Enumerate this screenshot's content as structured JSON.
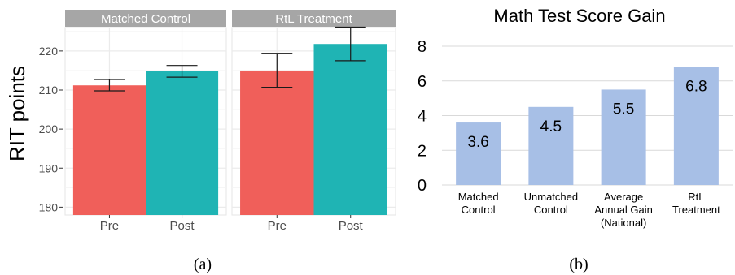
{
  "chart_data": [
    {
      "type": "bar",
      "panel_label": "(a)",
      "ylabel": "RIT points",
      "ylim": [
        178,
        226
      ],
      "yticks": [
        180,
        190,
        200,
        210,
        220
      ],
      "grid": true,
      "categories": [
        "Pre",
        "Post"
      ],
      "facets": [
        {
          "title": "Matched Control",
          "values": [
            211.2,
            214.8
          ],
          "err_low": [
            209.8,
            213.3
          ],
          "err_high": [
            212.7,
            216.3
          ]
        },
        {
          "title": "RtL Treatment",
          "values": [
            215.0,
            221.8
          ],
          "err_low": [
            210.7,
            217.5
          ],
          "err_high": [
            219.4,
            226.1
          ]
        }
      ],
      "colors": {
        "Pre": "#f05f5a",
        "Post": "#1fb4b4",
        "strip": "#a6a6a6",
        "panel_bg": "#ffffff",
        "grid": "#ebebeb"
      }
    },
    {
      "type": "bar",
      "panel_label": "(b)",
      "title": "Math Test Score Gain",
      "ylim": [
        0,
        8
      ],
      "yticks": [
        0,
        2,
        4,
        6,
        8
      ],
      "grid": true,
      "categories": [
        [
          "Matched",
          "Control"
        ],
        [
          "Unmatched",
          "Control"
        ],
        [
          "Average",
          "Annual Gain",
          "(National)"
        ],
        [
          "RtL",
          "Treatment"
        ]
      ],
      "values": [
        3.6,
        4.5,
        5.5,
        6.8
      ],
      "data_labels": [
        "3.6",
        "4.5",
        "5.5",
        "6.8"
      ],
      "colors": {
        "bar": "#a7bfe6",
        "grid": "#d9d9d9"
      }
    }
  ]
}
